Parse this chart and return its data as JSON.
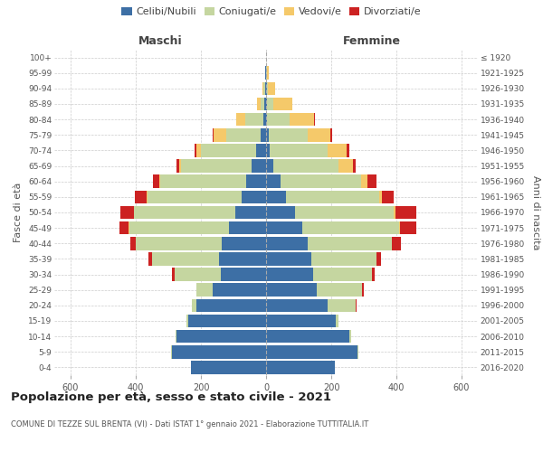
{
  "age_groups": [
    "0-4",
    "5-9",
    "10-14",
    "15-19",
    "20-24",
    "25-29",
    "30-34",
    "35-39",
    "40-44",
    "45-49",
    "50-54",
    "55-59",
    "60-64",
    "65-69",
    "70-74",
    "75-79",
    "80-84",
    "85-89",
    "90-94",
    "95-99",
    "100+"
  ],
  "birth_years": [
    "2016-2020",
    "2011-2015",
    "2006-2010",
    "2001-2005",
    "1996-2000",
    "1991-1995",
    "1986-1990",
    "1981-1985",
    "1976-1980",
    "1971-1975",
    "1966-1970",
    "1961-1965",
    "1956-1960",
    "1951-1955",
    "1946-1950",
    "1941-1945",
    "1936-1940",
    "1931-1935",
    "1926-1930",
    "1921-1925",
    "≤ 1920"
  ],
  "maschi_celibi": [
    230,
    290,
    275,
    240,
    215,
    165,
    140,
    145,
    135,
    115,
    95,
    75,
    60,
    45,
    30,
    18,
    8,
    5,
    3,
    2,
    1
  ],
  "maschi_coniugati": [
    1,
    2,
    3,
    5,
    12,
    48,
    140,
    205,
    265,
    305,
    310,
    290,
    265,
    215,
    170,
    105,
    55,
    12,
    5,
    2,
    0
  ],
  "maschi_vedovi": [
    0,
    0,
    0,
    0,
    0,
    0,
    0,
    0,
    0,
    1,
    1,
    2,
    4,
    8,
    15,
    38,
    28,
    10,
    2,
    0,
    0
  ],
  "maschi_divorziati": [
    0,
    0,
    0,
    0,
    1,
    2,
    8,
    10,
    18,
    28,
    42,
    35,
    18,
    8,
    5,
    2,
    0,
    0,
    0,
    0,
    0
  ],
  "femmine_celibi": [
    210,
    280,
    255,
    215,
    190,
    155,
    145,
    140,
    128,
    110,
    88,
    62,
    45,
    22,
    12,
    8,
    4,
    3,
    2,
    1,
    1
  ],
  "femmine_coniugati": [
    1,
    3,
    5,
    8,
    85,
    140,
    180,
    200,
    258,
    298,
    305,
    285,
    248,
    200,
    178,
    120,
    68,
    18,
    4,
    2,
    0
  ],
  "femmine_vedovi": [
    0,
    0,
    0,
    0,
    0,
    0,
    0,
    0,
    1,
    2,
    5,
    8,
    18,
    45,
    58,
    70,
    75,
    60,
    22,
    4,
    0
  ],
  "femmine_divorziati": [
    0,
    0,
    0,
    0,
    2,
    4,
    8,
    12,
    28,
    52,
    62,
    38,
    28,
    8,
    8,
    5,
    3,
    0,
    0,
    0,
    0
  ],
  "colors": {
    "celibi": "#3d6fa5",
    "coniugati": "#c5d6a0",
    "vedovi": "#f5c96a",
    "divorziati": "#cc2222"
  },
  "xlim": 650,
  "xticks": [
    -600,
    -400,
    -200,
    0,
    200,
    400,
    600
  ],
  "title": "Popolazione per età, sesso e stato civile - 2021",
  "subtitle": "COMUNE DI TEZZE SUL BRENTA (VI) - Dati ISTAT 1° gennaio 2021 - Elaborazione TUTTITALIA.IT",
  "ylabel_left": "Fasce di età",
  "ylabel_right": "Anni di nascita",
  "maschi_label": "Maschi",
  "femmine_label": "Femmine",
  "legend_labels": [
    "Celibi/Nubili",
    "Coniugati/e",
    "Vedovi/e",
    "Divorziati/e"
  ]
}
